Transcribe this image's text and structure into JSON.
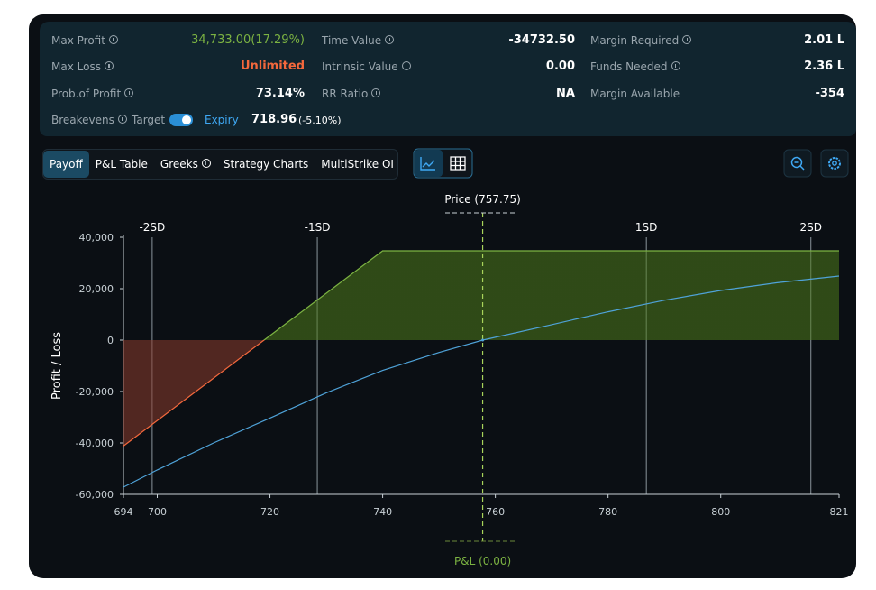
{
  "stats": [
    {
      "label": "Max Profit",
      "value": "34,733.00(17.29%)"
    },
    {
      "label": "Time Value",
      "value": "-34732.50"
    },
    {
      "label": "Margin Required",
      "value": "2.01 L"
    },
    {
      "label": "Max Loss",
      "value": "Unlimited"
    },
    {
      "label": "Intrinsic Value",
      "value": "0.00"
    },
    {
      "label": "Funds Needed",
      "value": "2.36 L"
    },
    {
      "label": "Prob.of Profit",
      "value": "73.14%"
    },
    {
      "label": "RR Ratio",
      "value": "NA"
    },
    {
      "label": "Margin Available",
      "value": "-354"
    }
  ],
  "breakevens": {
    "label": "Breakevens",
    "toggle": "Target",
    "mode": "Expiry",
    "value": "718.96",
    "change": "(-5.10%)"
  },
  "tabs": [
    "Payoff",
    "P&L Table",
    "Greeks",
    "Strategy Charts",
    "MultiStrike OI"
  ],
  "chart_data": {
    "type": "line",
    "ylabel": "Profit / Loss",
    "xlim": [
      694,
      821
    ],
    "ylim": [
      -60000,
      40000
    ],
    "xticks": [
      694,
      700,
      720,
      740,
      760,
      780,
      800,
      821
    ],
    "yticks": [
      {
        "value": 40000,
        "label": "40,000"
      },
      {
        "value": 20000,
        "label": "20,000"
      },
      0,
      {
        "value": -20000,
        "label": "-20,000"
      },
      {
        "value": -40000,
        "label": "-40,000"
      },
      {
        "value": -60000,
        "label": "-60,000"
      }
    ],
    "series": [
      {
        "color": "#7cb342",
        "negative_color": "#f4683c",
        "fill": true,
        "x": [
          694,
          718.96,
          740,
          821
        ],
        "values": [
          -41200,
          0,
          34733,
          34733
        ]
      },
      {
        "color": "#4fa3d9",
        "x": [
          694,
          700,
          710,
          720,
          730,
          740,
          750,
          757.75,
          770,
          780,
          790,
          800,
          810,
          821
        ],
        "values": [
          -57200,
          -50500,
          -40000,
          -30300,
          -20500,
          -11800,
          -4800,
          0,
          6000,
          11000,
          15500,
          19300,
          22300,
          24900
        ]
      }
    ],
    "markers": [
      {
        "value": 699.1,
        "label": "-2SD"
      },
      {
        "value": 728.4,
        "label": "-1SD"
      },
      {
        "value": 786.8,
        "label": "1SD"
      },
      {
        "value": 816,
        "label": "2SD"
      }
    ],
    "price": {
      "value": 757.75,
      "label": "Price (757.75)"
    },
    "pnl": {
      "value": 0,
      "label": "P&L (0.00)"
    }
  }
}
